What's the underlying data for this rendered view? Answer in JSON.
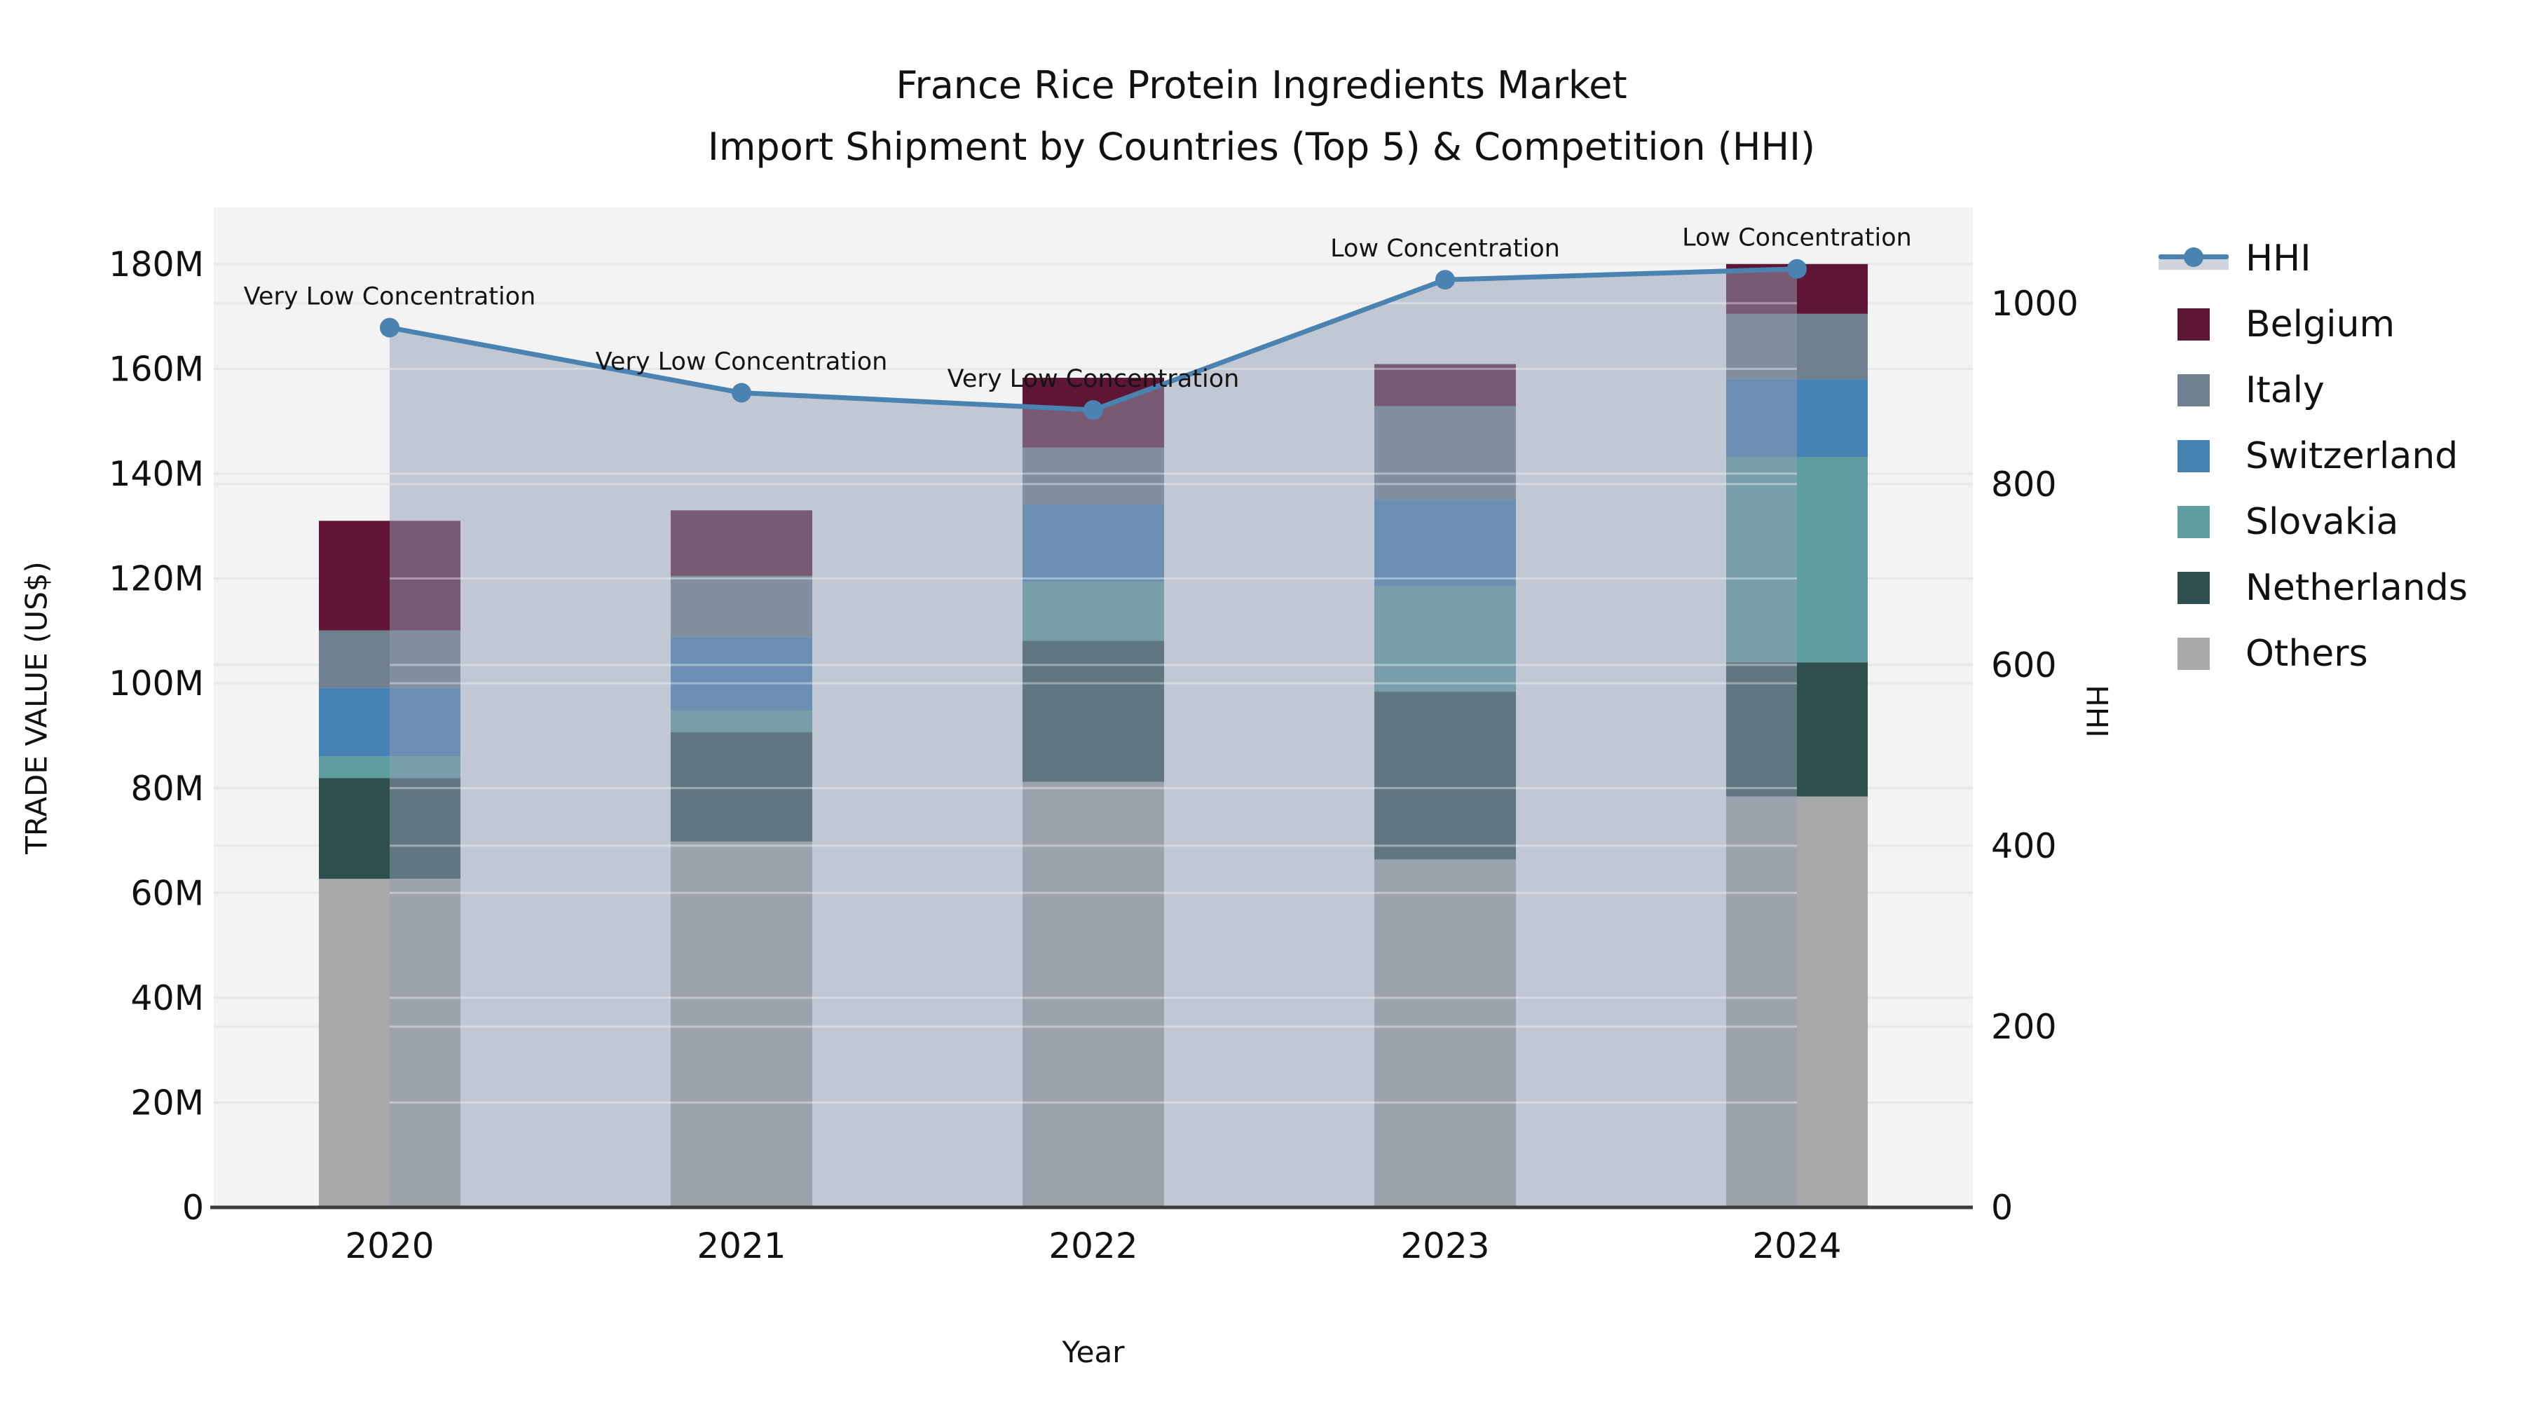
{
  "title": "France Rice Protein Ingredients Market",
  "subtitle": "Import Shipment by Countries (Top 5) & Competition (HHI)",
  "axes": {
    "left_label": "TRADE VALUE (US$)",
    "right_label": "HHI",
    "bottom_label": "Year"
  },
  "legend": {
    "items": [
      {
        "label": "HHI",
        "type": "line"
      },
      {
        "label": "Belgium",
        "type": "square",
        "color": "#5e1634"
      },
      {
        "label": "Italy",
        "type": "square",
        "color": "#708090"
      },
      {
        "label": "Switzerland",
        "type": "square",
        "color": "#4682b4"
      },
      {
        "label": "Slovakia",
        "type": "square",
        "color": "#5f9ea0"
      },
      {
        "label": "Netherlands",
        "type": "square",
        "color": "#2f4f4f"
      },
      {
        "label": "Others",
        "type": "square",
        "color": "#a9a9a9"
      }
    ]
  },
  "chart_data": {
    "type": "combo: stacked bar (trade value US$M) + line with area fill (HHI)",
    "categories": [
      "2020",
      "2021",
      "2022",
      "2023",
      "2024"
    ],
    "stack_order_bottom_to_top": [
      "Others",
      "Netherlands",
      "Slovakia",
      "Switzerland",
      "Italy",
      "Belgium"
    ],
    "series": [
      {
        "name": "Others",
        "values": [
          62.7,
          69.8,
          81.2,
          66.4,
          78.4
        ]
      },
      {
        "name": "Netherlands",
        "values": [
          19.2,
          20.9,
          26.9,
          32.0,
          25.6
        ]
      },
      {
        "name": "Slovakia",
        "values": [
          4.2,
          4.1,
          11.2,
          20.2,
          39.2
        ]
      },
      {
        "name": "Switzerland",
        "values": [
          13.0,
          14.0,
          14.8,
          16.5,
          14.8
        ]
      },
      {
        "name": "Italy",
        "values": [
          11.0,
          11.7,
          10.9,
          17.8,
          12.5
        ]
      },
      {
        "name": "Belgium",
        "values": [
          20.9,
          12.5,
          13.3,
          8.0,
          9.5
        ]
      }
    ],
    "bar_totals": [
      131.0,
      133.0,
      158.3,
      160.9,
      180.0
    ],
    "hhi_line": {
      "name": "HHI",
      "values": [
        973,
        901,
        882,
        1026,
        1038
      ],
      "annotations": [
        "Very Low Concentration",
        "Very Low Concentration",
        "Very Low Concentration",
        "Low Concentration",
        "Low Concentration"
      ]
    },
    "title": "France Rice Protein Ingredients Market",
    "subtitle": "Import Shipment by Countries (Top 5) & Competition (HHI)",
    "xlabel": "Year",
    "ylabel_left": "TRADE VALUE (US$)",
    "ylabel_right": "HHI",
    "left_ticks": [
      "0",
      "20M",
      "40M",
      "60M",
      "80M",
      "100M",
      "120M",
      "140M",
      "160M",
      "180M"
    ],
    "left_tick_values": [
      0,
      20,
      40,
      60,
      80,
      100,
      120,
      140,
      160,
      180
    ],
    "left_ylim": [
      0,
      190.8
    ],
    "right_ticks": [
      "0",
      "200",
      "400",
      "600",
      "800",
      "1000"
    ],
    "right_tick_values": [
      0,
      200,
      400,
      600,
      800,
      1000
    ],
    "right_ylim": [
      0,
      1106
    ],
    "grid": true,
    "legend_position": "right"
  },
  "colors": {
    "Belgium": "#5e1634",
    "Italy": "#708090",
    "Switzerland": "#4682b4",
    "Slovakia": "#5f9ea0",
    "Netherlands": "#2f4f4f",
    "Others": "#a9a9a9",
    "hhi_line": "#4a83b2",
    "hhi_fill": "#929eb1",
    "hhi_fill_opacity": 0.5,
    "plot_bg": "#f3f3f4",
    "gridline": "#e6e7e9",
    "axis_line": "#3c3c3c",
    "text": "#111111"
  }
}
